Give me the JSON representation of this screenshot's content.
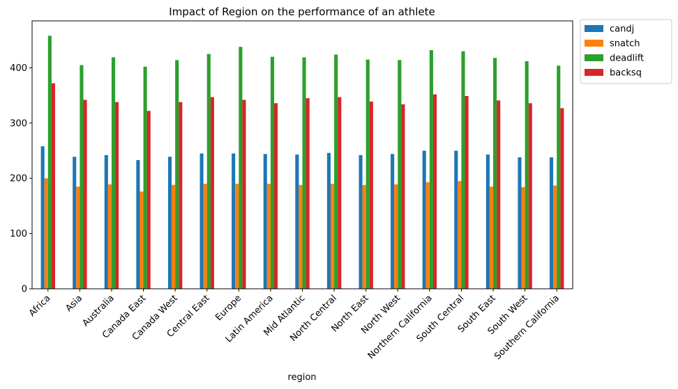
{
  "chart_data": {
    "type": "bar",
    "title": "Impact of Region on the performance of an athlete",
    "xlabel": "region",
    "ylabel": "",
    "ylim": [
      0,
      485
    ],
    "yticks": [
      0,
      100,
      200,
      300,
      400
    ],
    "grid": false,
    "legend_placement": "outside-top-right",
    "categories": [
      "Africa",
      "Asia",
      "Australia",
      "Canada East",
      "Canada West",
      "Central East",
      "Europe",
      "Latin America",
      "Mid Atlantic",
      "North Central",
      "North East",
      "North West",
      "Northern California",
      "South Central",
      "South East",
      "South West",
      "Southern California"
    ],
    "series": [
      {
        "name": "candj",
        "color": "#1f77b4",
        "values": [
          258,
          239,
          242,
          233,
          239,
          245,
          245,
          244,
          243,
          246,
          242,
          244,
          250,
          250,
          243,
          238,
          238
        ]
      },
      {
        "name": "snatch",
        "color": "#ff7f0e",
        "values": [
          200,
          185,
          189,
          176,
          188,
          190,
          190,
          190,
          188,
          190,
          188,
          189,
          193,
          195,
          185,
          184,
          187
        ]
      },
      {
        "name": "deadlift",
        "color": "#2ca02c",
        "values": [
          458,
          405,
          419,
          402,
          414,
          425,
          438,
          420,
          419,
          424,
          415,
          414,
          432,
          430,
          418,
          412,
          404
        ]
      },
      {
        "name": "backsq",
        "color": "#d62728",
        "values": [
          372,
          342,
          338,
          322,
          338,
          347,
          342,
          336,
          345,
          347,
          339,
          334,
          352,
          349,
          341,
          336,
          327
        ]
      }
    ]
  }
}
